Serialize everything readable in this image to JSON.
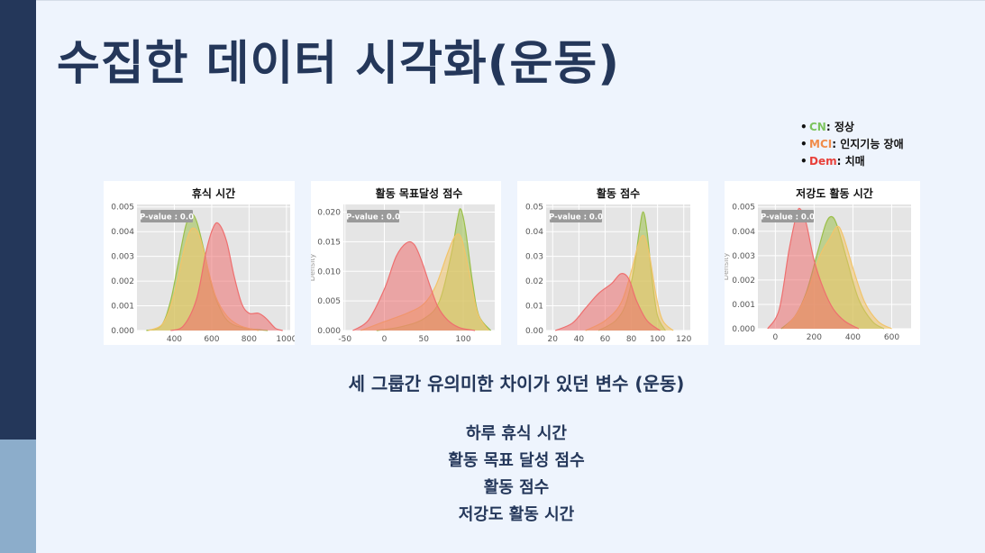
{
  "slide": {
    "title": "수집한 데이터 시각화(운동)",
    "legend": [
      {
        "abbr": "CN",
        "desc": ": 정상",
        "color": "#7cc45e"
      },
      {
        "abbr": "MCI",
        "desc": ": 인지기능 장애",
        "color": "#f08c4a"
      },
      {
        "abbr": "Dem",
        "desc": ": 치매",
        "color": "#e8403a"
      }
    ],
    "summary_heading": "세 그룹간 유의미한 차이가 있던 변수 (운동)",
    "variables": [
      "하루 휴식 시간",
      "활동 목표 달성 점수",
      "활동 점수",
      "저강도 활동 시간"
    ]
  },
  "series_colors": {
    "CN": "#9bbf4a",
    "MCI": "#f2c46a",
    "Dem": "#ee6f6f"
  },
  "chart_data": [
    {
      "type": "area",
      "title": "휴식 시간",
      "pvalue_label": "P-value : 0.0",
      "xlabel": "",
      "ylabel": "",
      "xlim": [
        200,
        1020
      ],
      "ylim": [
        0,
        0.0051
      ],
      "xticks": [
        400,
        600,
        800,
        1000
      ],
      "xtick_labels": [
        "400",
        "600",
        "800",
        "1000"
      ],
      "yticks": [
        0,
        0.001,
        0.002,
        0.003,
        0.004,
        0.005
      ],
      "ytick_labels": [
        "0.000",
        "0.001",
        "0.002",
        "0.003",
        "0.004",
        "0.005"
      ],
      "grid": true,
      "series": [
        {
          "key": "CN",
          "points": [
            [
              250,
              0
            ],
            [
              330,
              0.0002
            ],
            [
              380,
              0.0012
            ],
            [
              420,
              0.0027
            ],
            [
              460,
              0.0042
            ],
            [
              490,
              0.0047
            ],
            [
              520,
              0.0044
            ],
            [
              560,
              0.0032
            ],
            [
              600,
              0.0018
            ],
            [
              650,
              0.0008
            ],
            [
              700,
              0.0003
            ],
            [
              780,
              0.0001
            ],
            [
              900,
              0
            ]
          ]
        },
        {
          "key": "MCI",
          "points": [
            [
              260,
              0
            ],
            [
              340,
              0.0003
            ],
            [
              400,
              0.0015
            ],
            [
              450,
              0.0032
            ],
            [
              490,
              0.0041
            ],
            [
              530,
              0.0039
            ],
            [
              570,
              0.0028
            ],
            [
              620,
              0.0014
            ],
            [
              680,
              0.0006
            ],
            [
              750,
              0.0002
            ],
            [
              850,
              0
            ]
          ]
        },
        {
          "key": "Dem",
          "points": [
            [
              380,
              0
            ],
            [
              450,
              0.0002
            ],
            [
              520,
              0.0013
            ],
            [
              570,
              0.0032
            ],
            [
              610,
              0.0042
            ],
            [
              640,
              0.0043
            ],
            [
              680,
              0.0036
            ],
            [
              720,
              0.0022
            ],
            [
              760,
              0.0011
            ],
            [
              800,
              0.0007
            ],
            [
              850,
              0.0007
            ],
            [
              890,
              0.0005
            ],
            [
              940,
              0.0001
            ],
            [
              980,
              0
            ]
          ]
        }
      ]
    },
    {
      "type": "area",
      "title": "활동 목표달성 점수",
      "pvalue_label": "P-value : 0.0",
      "xlabel": "",
      "ylabel": "Density",
      "xlim": [
        -52,
        140
      ],
      "ylim": [
        0,
        0.0213
      ],
      "xticks": [
        -50,
        0,
        50,
        100
      ],
      "xtick_labels": [
        "-50",
        "0",
        "50",
        "100"
      ],
      "yticks": [
        0,
        0.005,
        0.01,
        0.015,
        0.02
      ],
      "ytick_labels": [
        "0.000",
        "0.005",
        "0.010",
        "0.015",
        "0.020"
      ],
      "grid": true,
      "series": [
        {
          "key": "CN",
          "points": [
            [
              -10,
              0
            ],
            [
              20,
              0.0006
            ],
            [
              50,
              0.002
            ],
            [
              70,
              0.005
            ],
            [
              85,
              0.013
            ],
            [
              93,
              0.019
            ],
            [
              97,
              0.0205
            ],
            [
              103,
              0.017
            ],
            [
              112,
              0.008
            ],
            [
              120,
              0.0025
            ],
            [
              135,
              0
            ]
          ]
        },
        {
          "key": "MCI",
          "points": [
            [
              -30,
              0
            ],
            [
              0,
              0.0015
            ],
            [
              30,
              0.003
            ],
            [
              50,
              0.0045
            ],
            [
              65,
              0.0075
            ],
            [
              80,
              0.013
            ],
            [
              90,
              0.016
            ],
            [
              98,
              0.0155
            ],
            [
              108,
              0.0095
            ],
            [
              118,
              0.003
            ],
            [
              132,
              0
            ]
          ]
        },
        {
          "key": "Dem",
          "points": [
            [
              -40,
              0
            ],
            [
              -20,
              0.0018
            ],
            [
              0,
              0.007
            ],
            [
              15,
              0.0125
            ],
            [
              28,
              0.0148
            ],
            [
              38,
              0.0145
            ],
            [
              48,
              0.0115
            ],
            [
              58,
              0.0075
            ],
            [
              68,
              0.004
            ],
            [
              80,
              0.0018
            ],
            [
              95,
              0.0005
            ],
            [
              115,
              0
            ]
          ]
        }
      ]
    },
    {
      "type": "area",
      "title": "활동 점수",
      "pvalue_label": "P-value : 0.0",
      "xlabel": "",
      "ylabel": "",
      "xlim": [
        15,
        125
      ],
      "ylim": [
        0,
        0.051
      ],
      "xticks": [
        20,
        40,
        60,
        80,
        100,
        120
      ],
      "xtick_labels": [
        "20",
        "40",
        "60",
        "80",
        "100",
        "120"
      ],
      "yticks": [
        0,
        0.01,
        0.02,
        0.03,
        0.04,
        0.05
      ],
      "ytick_labels": [
        "0.00",
        "0.01",
        "0.02",
        "0.03",
        "0.04",
        "0.05"
      ],
      "grid": true,
      "series": [
        {
          "key": "CN",
          "points": [
            [
              55,
              0
            ],
            [
              68,
              0.004
            ],
            [
              76,
              0.011
            ],
            [
              82,
              0.025
            ],
            [
              86,
              0.04
            ],
            [
              89,
              0.048
            ],
            [
              92,
              0.04
            ],
            [
              96,
              0.02
            ],
            [
              100,
              0.006
            ],
            [
              106,
              0
            ]
          ]
        },
        {
          "key": "MCI",
          "points": [
            [
              45,
              0
            ],
            [
              60,
              0.004
            ],
            [
              72,
              0.011
            ],
            [
              80,
              0.024
            ],
            [
              86,
              0.036
            ],
            [
              90,
              0.038
            ],
            [
              94,
              0.03
            ],
            [
              99,
              0.014
            ],
            [
              104,
              0.004
            ],
            [
              112,
              0
            ]
          ]
        },
        {
          "key": "Dem",
          "points": [
            [
              22,
              0
            ],
            [
              35,
              0.003
            ],
            [
              45,
              0.009
            ],
            [
              55,
              0.015
            ],
            [
              65,
              0.019
            ],
            [
              72,
              0.023
            ],
            [
              78,
              0.021
            ],
            [
              84,
              0.012
            ],
            [
              92,
              0.004
            ],
            [
              102,
              0
            ]
          ]
        }
      ]
    },
    {
      "type": "area",
      "title": "저강도 활동 시간",
      "pvalue_label": "P-value : 0.0",
      "xlabel": "",
      "ylabel": "Density",
      "xlim": [
        -90,
        700
      ],
      "ylim": [
        0,
        0.0051
      ],
      "xticks": [
        0,
        200,
        400,
        600
      ],
      "xtick_labels": [
        "0",
        "200",
        "400",
        "600"
      ],
      "yticks": [
        0,
        0.001,
        0.002,
        0.003,
        0.004,
        0.005
      ],
      "ytick_labels": [
        "0.000",
        "0.001",
        "0.002",
        "0.003",
        "0.004",
        "0.005"
      ],
      "grid": true,
      "series": [
        {
          "key": "CN",
          "points": [
            [
              30,
              0
            ],
            [
              100,
              0.0005
            ],
            [
              160,
              0.0015
            ],
            [
              220,
              0.0032
            ],
            [
              260,
              0.0043
            ],
            [
              290,
              0.0046
            ],
            [
              320,
              0.0042
            ],
            [
              370,
              0.0028
            ],
            [
              430,
              0.0012
            ],
            [
              500,
              0.0003
            ],
            [
              560,
              0
            ]
          ]
        },
        {
          "key": "MCI",
          "points": [
            [
              40,
              0
            ],
            [
              110,
              0.0006
            ],
            [
              170,
              0.0016
            ],
            [
              230,
              0.003
            ],
            [
              280,
              0.0037
            ],
            [
              320,
              0.0042
            ],
            [
              350,
              0.0038
            ],
            [
              400,
              0.0025
            ],
            [
              460,
              0.0011
            ],
            [
              530,
              0.0003
            ],
            [
              600,
              0
            ]
          ]
        },
        {
          "key": "Dem",
          "points": [
            [
              -40,
              0
            ],
            [
              20,
              0.0008
            ],
            [
              70,
              0.0032
            ],
            [
              110,
              0.0047
            ],
            [
              130,
              0.0049
            ],
            [
              160,
              0.0043
            ],
            [
              200,
              0.0028
            ],
            [
              250,
              0.0016
            ],
            [
              300,
              0.0008
            ],
            [
              360,
              0.0003
            ],
            [
              430,
              0
            ]
          ]
        }
      ]
    }
  ]
}
